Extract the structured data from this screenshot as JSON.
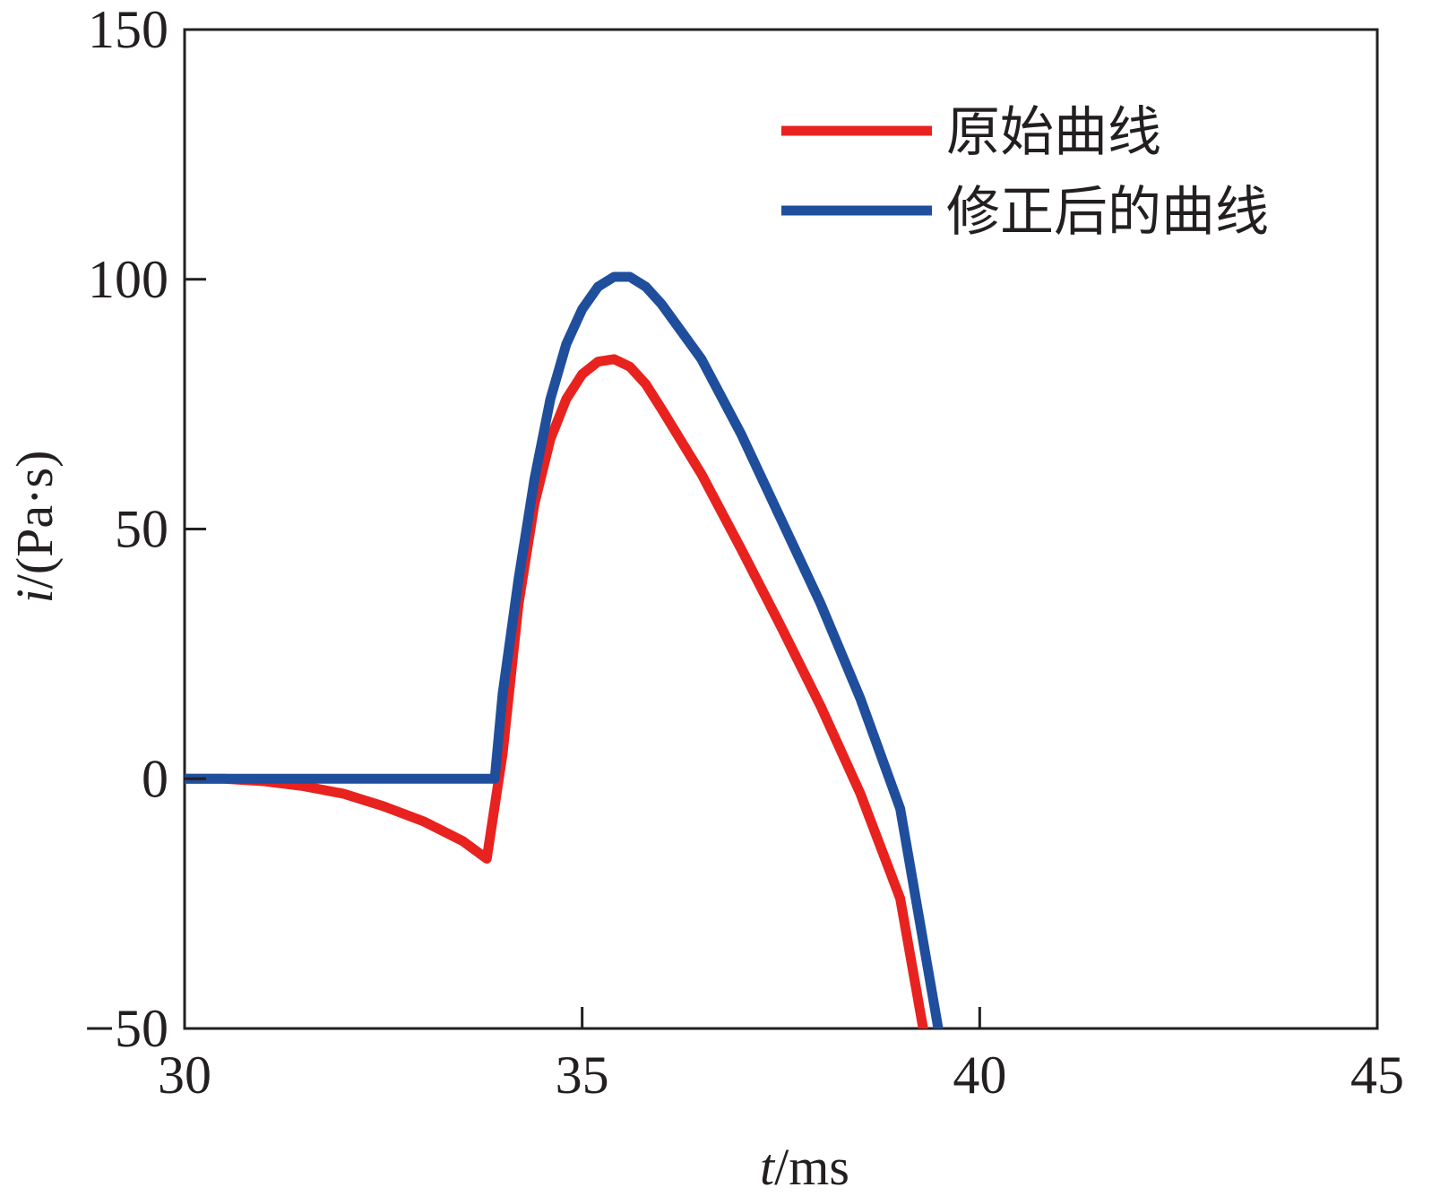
{
  "chart_data": {
    "type": "line",
    "xlabel": {
      "var": "t",
      "unit": "/ms"
    },
    "ylabel": {
      "var": "i",
      "unit": "/(Pa·s)"
    },
    "xlim": [
      30,
      45
    ],
    "ylim": [
      -50,
      150
    ],
    "xticks": [
      30,
      35,
      40,
      45
    ],
    "xtick_labels": [
      "30",
      "35",
      "40",
      "45"
    ],
    "yticks": [
      -50,
      0,
      50,
      100,
      150
    ],
    "ytick_labels": [
      "−50",
      "0",
      "50",
      "100",
      "150"
    ],
    "legend_position": "top-right",
    "grid": false,
    "series": [
      {
        "name": "原始曲线",
        "color": "#e8221f",
        "x": [
          30.0,
          30.5,
          31.0,
          31.5,
          32.0,
          32.5,
          33.0,
          33.5,
          33.8,
          34.0,
          34.2,
          34.4,
          34.6,
          34.8,
          35.0,
          35.2,
          35.4,
          35.6,
          35.8,
          36.0,
          36.5,
          37.0,
          37.5,
          38.0,
          38.5,
          39.0,
          39.3
        ],
        "values": [
          0.0,
          0.0,
          -0.5,
          -1.5,
          -3.0,
          -5.5,
          -8.5,
          -12.5,
          -16.0,
          5.0,
          35.0,
          55.0,
          68.0,
          76.0,
          81.0,
          83.5,
          84.0,
          82.5,
          79.0,
          74.0,
          61.0,
          46.0,
          30.5,
          14.5,
          -3.0,
          -24.0,
          -51.0
        ]
      },
      {
        "name": "修正后的曲线",
        "color": "#1f4e9c",
        "x": [
          30.0,
          31.0,
          32.0,
          33.0,
          33.8,
          33.9,
          34.0,
          34.2,
          34.4,
          34.6,
          34.8,
          35.0,
          35.2,
          35.4,
          35.6,
          35.8,
          36.0,
          36.5,
          37.0,
          37.5,
          38.0,
          38.5,
          39.0,
          39.5
        ],
        "values": [
          0.0,
          0.0,
          0.0,
          0.0,
          0.0,
          0.0,
          17.0,
          40.0,
          60.0,
          76.0,
          87.0,
          94.0,
          98.5,
          100.5,
          100.5,
          98.5,
          95.0,
          84.0,
          69.0,
          52.0,
          35.0,
          16.0,
          -6.0,
          -52.0
        ]
      }
    ]
  }
}
